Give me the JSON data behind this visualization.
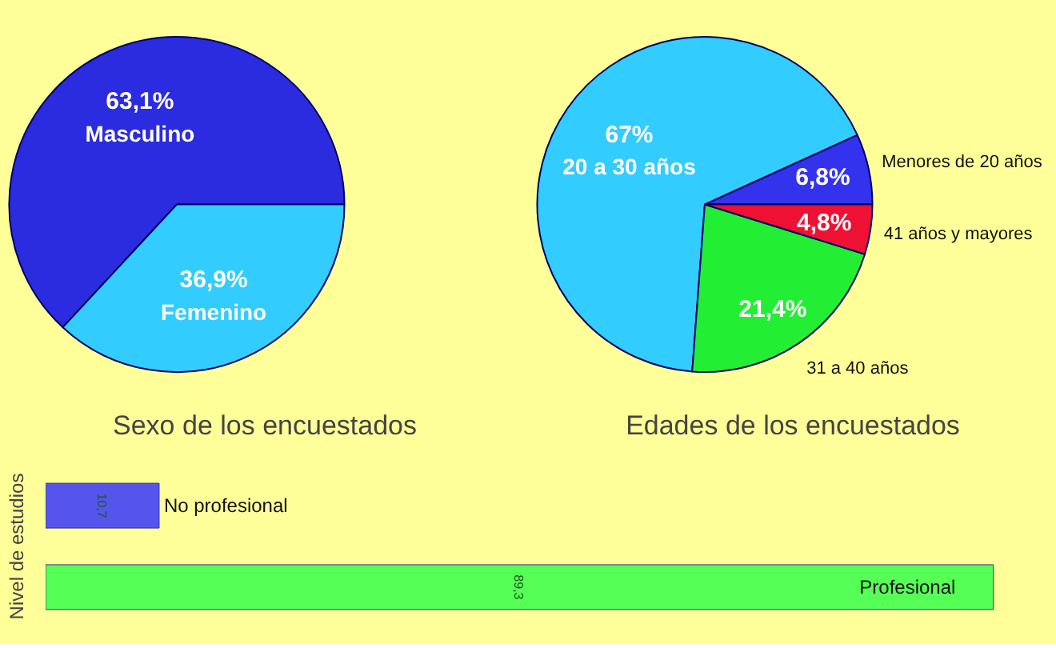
{
  "chart_data": [
    {
      "type": "pie",
      "title": "Sexo de los encuestados",
      "categories": [
        "Masculino",
        "Femenino"
      ],
      "values": [
        63.1,
        36.9
      ],
      "value_labels": [
        "63,1%",
        "36,9%"
      ],
      "colors": [
        "#2b2be0",
        "#33ccff"
      ]
    },
    {
      "type": "pie",
      "title": "Edades de los encuestados",
      "categories": [
        "Menores de 20 años",
        "20 a 30 años",
        "31 a 40 años",
        "41 años y mayores"
      ],
      "values": [
        6.8,
        67,
        21.4,
        4.8
      ],
      "value_labels": [
        "6,8%",
        "67%",
        "21,4%",
        "4,8%"
      ],
      "colors": [
        "#3333ee",
        "#33ccff",
        "#22ee33",
        "#ee1133"
      ]
    },
    {
      "type": "bar",
      "orientation": "horizontal",
      "ylabel": "Nivel de estudios",
      "categories": [
        "No profesional",
        "Profesional"
      ],
      "values": [
        10.7,
        89.3
      ],
      "value_labels": [
        "10,7",
        "89,3"
      ],
      "colors": [
        "#5555ee",
        "#55ff55"
      ]
    }
  ]
}
